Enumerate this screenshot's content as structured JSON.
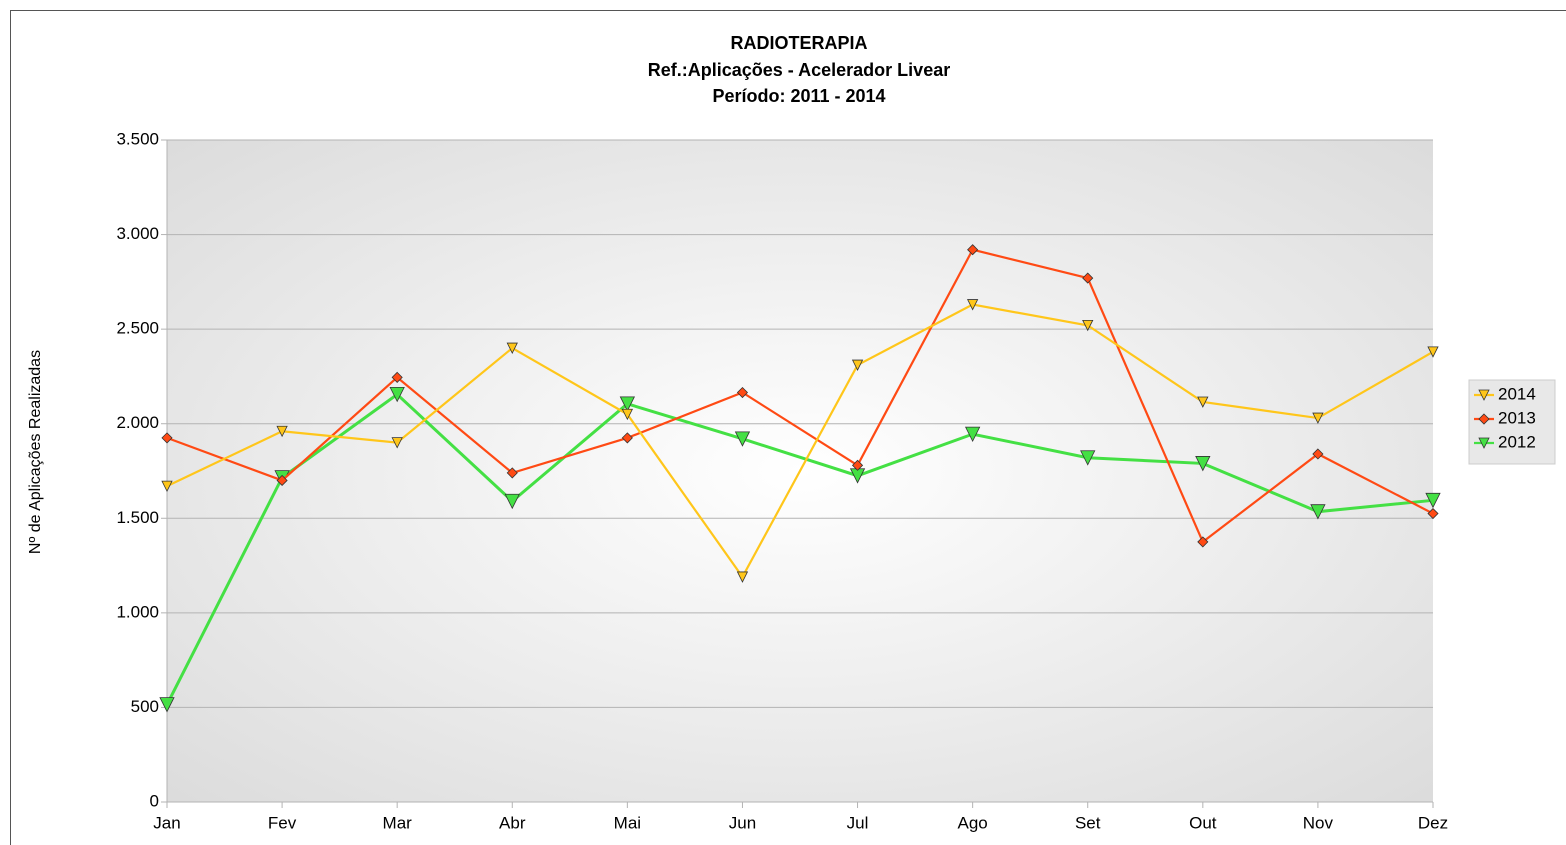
{
  "chart_data": {
    "type": "line",
    "title": "RADIOTERAPIA",
    "subtitle": [
      "Ref.:Aplicações - Acelerador Livear",
      "Período: 2011 - 2014"
    ],
    "y_label": "Nº de Aplicações Realizadas",
    "categories": [
      "Jan",
      "Fev",
      "Mar",
      "Abr",
      "Mai",
      "Jun",
      "Jul",
      "Ago",
      "Set",
      "Out",
      "Nov",
      "Dez"
    ],
    "series": [
      {
        "name": "2014",
        "color": "#ffc61a",
        "marker": "triangle-down",
        "values": [
          1670,
          1960,
          1900,
          2400,
          2050,
          1190,
          2310,
          2630,
          2520,
          2115,
          2030,
          2380
        ]
      },
      {
        "name": "2013",
        "color": "#ff4a14",
        "marker": "diamond",
        "values": [
          1925,
          1700,
          2245,
          1740,
          1925,
          2165,
          1780,
          2920,
          2770,
          1375,
          1840,
          1525
        ]
      },
      {
        "name": "2012",
        "color": "#44e044",
        "marker": "triangle-down-large",
        "values": [
          515,
          1715,
          2155,
          1590,
          2105,
          1920,
          1725,
          1945,
          1820,
          1790,
          1535,
          1595
        ]
      }
    ],
    "ylim": [
      0,
      3500
    ],
    "yticks": [
      0,
      500,
      {
        "value": 1000,
        "label": "1.000"
      },
      {
        "value": 1500,
        "label": "1.500"
      },
      {
        "value": 2000,
        "label": "2.000"
      },
      {
        "value": 2500,
        "label": "2.500"
      },
      {
        "value": 3000,
        "label": "3.000"
      },
      {
        "value": 3500,
        "label": "3.500"
      }
    ],
    "grid": true,
    "legend": "right"
  }
}
